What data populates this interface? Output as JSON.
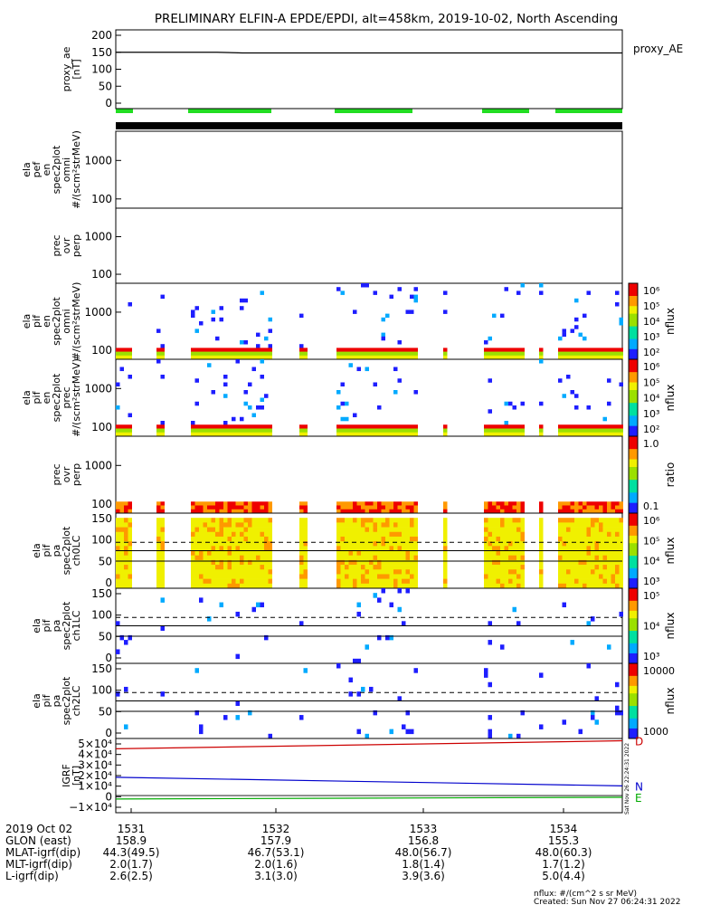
{
  "title": "PRELIMINARY ELFIN-A EPDE/EPDI, alt=458km, 2019-10-02, North Ascending",
  "colors": {
    "bg": "#ffffff",
    "axis": "#000000",
    "science_bar": "#22dd22",
    "B_D": "#cc0000",
    "B_N": "#0000cc",
    "B_E": "#00aa00"
  },
  "chart_data": [
    {
      "type": "line",
      "name": "proxy_ae",
      "ylabel_lines": [
        "proxy_ae",
        "[nT]"
      ],
      "legend": "proxy_AE",
      "yticks": [
        "200",
        "150",
        "100",
        "50",
        "0"
      ],
      "ylim": [
        0,
        200
      ],
      "x": [
        0,
        0.2,
        0.25,
        1
      ],
      "values": [
        150,
        150,
        148,
        148
      ]
    },
    {
      "type": "heatmap",
      "name": "ela_pef_en_spec2plot_omni",
      "ylabel_lines": [
        "ela",
        "pef",
        "en",
        "spec2plot",
        "omni",
        "#/(scm²strMeV)"
      ],
      "yticks": [
        "1000",
        "100"
      ],
      "scale": "log"
    },
    {
      "type": "heatmap",
      "name": "ela_pef_prec_ovr_perp",
      "ylabel_lines": [
        "prec",
        "ovr",
        "perp"
      ],
      "yticks": [
        "1000",
        "100"
      ],
      "scale": "log"
    },
    {
      "type": "heatmap",
      "name": "ela_pif_en_spec2plot_omni",
      "ylabel_lines": [
        "ela",
        "pif",
        "en",
        "spec2plot",
        "omni",
        "#/(scm²strMeV)"
      ],
      "yticks": [
        "1000",
        "100"
      ],
      "scale": "log",
      "colorbar": {
        "label": "nflux",
        "ticks": [
          "10⁶",
          "10⁵",
          "10⁴",
          "10³",
          "10²"
        ]
      }
    },
    {
      "type": "heatmap",
      "name": "ela_pif_en_spec2plot_prec",
      "ylabel_lines": [
        "ela",
        "pif",
        "en",
        "spec2plot",
        "prec",
        "#/(scm²strMeV)"
      ],
      "yticks": [
        "1000",
        "100"
      ],
      "scale": "log",
      "colorbar": {
        "label": "nflux",
        "ticks": [
          "10⁶",
          "10⁵",
          "10⁴",
          "10³",
          "10²"
        ]
      }
    },
    {
      "type": "heatmap",
      "name": "ela_pif_prec_ovr_perp",
      "ylabel_lines": [
        "prec",
        "ovr",
        "perp"
      ],
      "yticks": [
        "1000",
        "100"
      ],
      "scale": "log",
      "colorbar": {
        "label": "ratio",
        "ticks": [
          "1.0",
          "0.1"
        ]
      }
    },
    {
      "type": "heatmap",
      "name": "ela_pif_pa_spec2plot_ch0LC",
      "ylabel_lines": [
        "ela",
        "pif",
        "pa",
        "spec2plot",
        "ch0LC"
      ],
      "yticks": [
        "150",
        "100",
        "50",
        "0"
      ],
      "ylim": [
        0,
        180
      ],
      "colorbar": {
        "label": "nflux",
        "ticks": [
          "10⁶",
          "10⁵",
          "10⁴",
          "10³"
        ]
      }
    },
    {
      "type": "heatmap",
      "name": "ela_pif_pa_spec2plot_ch1LC",
      "ylabel_lines": [
        "ela",
        "pif",
        "pa",
        "spec2plot",
        "ch1LC"
      ],
      "yticks": [
        "150",
        "100",
        "50",
        "0"
      ],
      "ylim": [
        0,
        180
      ],
      "colorbar": {
        "label": "nflux",
        "ticks": [
          "10⁵",
          "10⁴",
          "10³"
        ]
      }
    },
    {
      "type": "heatmap",
      "name": "ela_pif_pa_spec2plot_ch2LC",
      "ylabel_lines": [
        "ela",
        "pif",
        "pa",
        "spec2plot",
        "ch2LC"
      ],
      "yticks": [
        "150",
        "100",
        "50",
        "0"
      ],
      "ylim": [
        0,
        180
      ],
      "colorbar": {
        "label": "nflux",
        "ticks": [
          "10000",
          "1000"
        ]
      }
    },
    {
      "type": "line",
      "name": "IGRF",
      "ylabel_lines": [
        "IGRF",
        "[nT]"
      ],
      "yticks": [
        "5×10⁴",
        "4×10⁴",
        "3×10⁴",
        "2×10⁴",
        "1×10⁴",
        "0",
        "−1×10⁴"
      ],
      "ylim": [
        -15000,
        50000
      ],
      "series": [
        {
          "name": "D",
          "color": "#cc0000",
          "x": [
            0,
            1
          ],
          "values": [
            41000,
            48000
          ]
        },
        {
          "name": "N",
          "color": "#0000cc",
          "x": [
            0,
            1
          ],
          "values": [
            16000,
            8500
          ]
        },
        {
          "name": "E",
          "color": "#00aa00",
          "x": [
            0,
            1
          ],
          "values": [
            -3000,
            -1500
          ]
        }
      ]
    }
  ],
  "xaxis": {
    "date": "2019 Oct 02",
    "ticks": [
      "1531",
      "1532",
      "1533",
      "1534"
    ],
    "rows": [
      {
        "label": "GLON (east)",
        "values": [
          "158.9",
          "157.9",
          "156.8",
          "155.3"
        ]
      },
      {
        "label": "MLAT-igrf(dip)",
        "values": [
          "44.3(49.5)",
          "46.7(53.1)",
          "48.0(56.7)",
          "48.0(60.3)"
        ]
      },
      {
        "label": "MLT-igrf(dip)",
        "values": [
          "2.0(1.7)",
          "2.0(1.6)",
          "1.8(1.4)",
          "1.7(1.2)"
        ]
      },
      {
        "label": "L-igrf(dip)",
        "values": [
          "2.6(2.5)",
          "3.1(3.0)",
          "3.9(3.6)",
          "5.0(4.4)"
        ]
      }
    ]
  },
  "footer": {
    "units": "nflux: #/(cm^2 s sr MeV)",
    "created": "Created: Sun Nov 27 06:24:31 2022",
    "side_stamp": "Sat Nov 26 22:24:31 2022"
  }
}
